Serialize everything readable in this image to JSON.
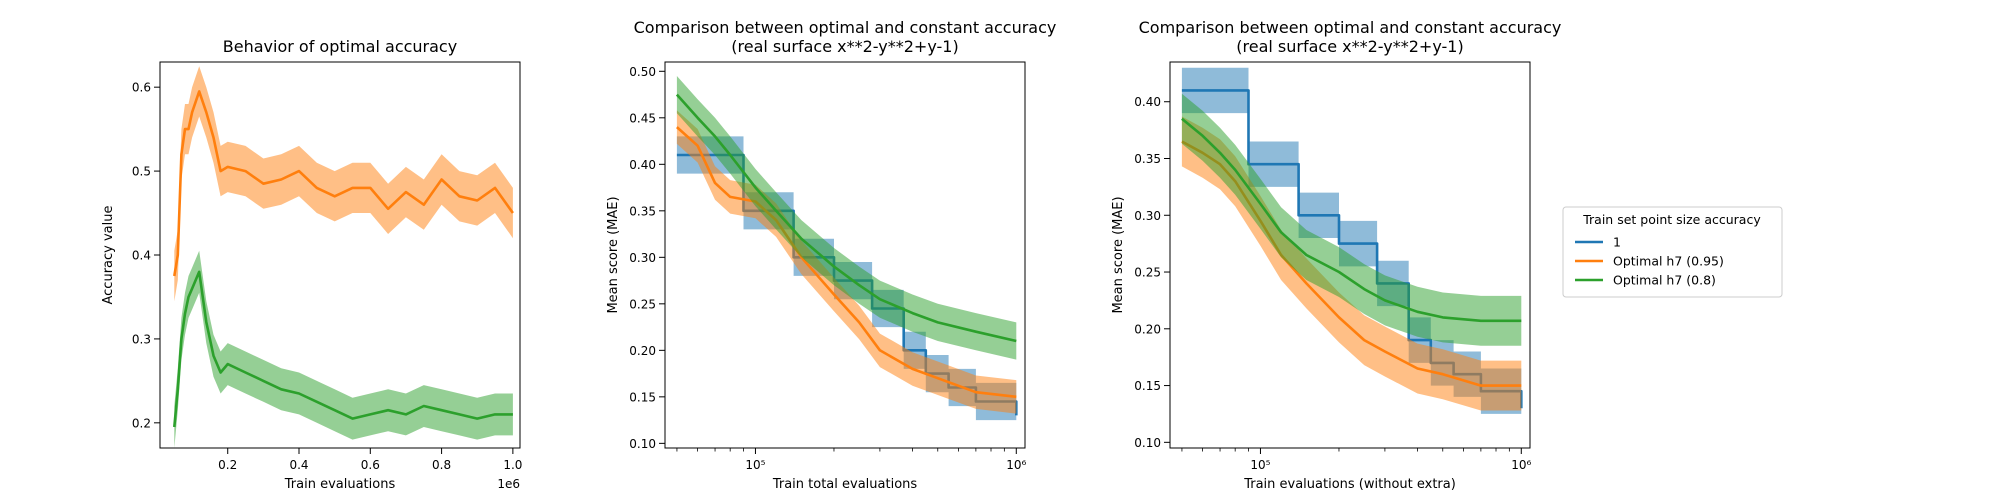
{
  "colors": {
    "blue": "#1f77b4",
    "orange": "#ff7f0e",
    "green": "#2ca02c"
  },
  "legend": {
    "title": "Train set point size accuracy",
    "entries": [
      {
        "label": "1",
        "color": "#1f77b4"
      },
      {
        "label": "Optimal h7 (0.95)",
        "color": "#ff7f0e"
      },
      {
        "label": "Optimal h7 (0.8)",
        "color": "#2ca02c"
      }
    ]
  },
  "chart_data": [
    {
      "type": "line",
      "title": "Behavior of optimal accuracy",
      "xlabel": "Train evaluations",
      "ylabel": "Accuracy value",
      "x_offset_text": "1e6",
      "xscale": "linear",
      "xlim": [
        0.01,
        1.02
      ],
      "ylim": [
        0.17,
        0.63
      ],
      "xticks": [
        0.2,
        0.4,
        0.6,
        0.8,
        1.0
      ],
      "xtick_labels": [
        "0.2",
        "0.4",
        "0.6",
        "0.8",
        "1.0"
      ],
      "yticks": [
        0.2,
        0.3,
        0.4,
        0.5,
        0.6
      ],
      "ytick_labels": [
        "0.2",
        "0.3",
        "0.4",
        "0.5",
        "0.6"
      ],
      "grid": false,
      "series": [
        {
          "color": "#ff7f0e",
          "x": [
            0.05,
            0.06,
            0.07,
            0.08,
            0.09,
            0.1,
            0.12,
            0.14,
            0.16,
            0.18,
            0.2,
            0.25,
            0.3,
            0.35,
            0.4,
            0.45,
            0.5,
            0.55,
            0.6,
            0.65,
            0.7,
            0.75,
            0.8,
            0.85,
            0.9,
            0.95,
            1.0
          ],
          "y": [
            0.375,
            0.4,
            0.52,
            0.55,
            0.55,
            0.57,
            0.595,
            0.57,
            0.54,
            0.5,
            0.505,
            0.5,
            0.485,
            0.49,
            0.5,
            0.48,
            0.47,
            0.48,
            0.48,
            0.455,
            0.475,
            0.46,
            0.49,
            0.47,
            0.465,
            0.48,
            0.45
          ],
          "band": 0.03
        },
        {
          "color": "#2ca02c",
          "x": [
            0.05,
            0.06,
            0.07,
            0.08,
            0.09,
            0.1,
            0.12,
            0.14,
            0.16,
            0.18,
            0.2,
            0.25,
            0.3,
            0.35,
            0.4,
            0.45,
            0.5,
            0.55,
            0.6,
            0.65,
            0.7,
            0.75,
            0.8,
            0.85,
            0.9,
            0.95,
            1.0
          ],
          "y": [
            0.195,
            0.24,
            0.3,
            0.33,
            0.35,
            0.36,
            0.38,
            0.32,
            0.28,
            0.26,
            0.27,
            0.26,
            0.25,
            0.24,
            0.235,
            0.225,
            0.215,
            0.205,
            0.21,
            0.215,
            0.21,
            0.22,
            0.215,
            0.21,
            0.205,
            0.21,
            0.21
          ],
          "band": 0.025
        }
      ]
    },
    {
      "type": "line",
      "title": "Comparison between optimal and constant accuracy\n(real surface x**2-y**2+y-1)",
      "xlabel": "Train total evaluations",
      "ylabel": "Mean score (MAE)",
      "xscale": "log",
      "xlim": [
        45000,
        1080000
      ],
      "ylim": [
        0.095,
        0.51
      ],
      "xticks": [
        100000,
        1000000
      ],
      "xtick_labels": [
        "10⁵",
        "10⁶"
      ],
      "yticks": [
        0.1,
        0.15,
        0.2,
        0.25,
        0.3,
        0.35,
        0.4,
        0.45,
        0.5
      ],
      "ytick_labels": [
        "0.10",
        "0.15",
        "0.20",
        "0.25",
        "0.30",
        "0.35",
        "0.40",
        "0.45",
        "0.50"
      ],
      "grid": false,
      "series": [
        {
          "color": "#1f77b4",
          "step": true,
          "x": [
            50000,
            90000,
            140000,
            200000,
            280000,
            370000,
            450000,
            550000,
            700000,
            1000000
          ],
          "y": [
            0.41,
            0.35,
            0.3,
            0.275,
            0.245,
            0.2,
            0.175,
            0.16,
            0.145,
            0.13
          ],
          "band": 0.02
        },
        {
          "color": "#ff7f0e",
          "x": [
            50000,
            60000,
            70000,
            80000,
            100000,
            120000,
            150000,
            200000,
            250000,
            300000,
            400000,
            500000,
            700000,
            1000000
          ],
          "y": [
            0.44,
            0.42,
            0.38,
            0.365,
            0.36,
            0.34,
            0.3,
            0.26,
            0.23,
            0.2,
            0.18,
            0.17,
            0.155,
            0.15
          ],
          "band": 0.018
        },
        {
          "color": "#2ca02c",
          "x": [
            50000,
            60000,
            70000,
            80000,
            100000,
            120000,
            150000,
            200000,
            250000,
            300000,
            400000,
            500000,
            700000,
            1000000
          ],
          "y": [
            0.475,
            0.45,
            0.43,
            0.41,
            0.375,
            0.35,
            0.32,
            0.29,
            0.27,
            0.255,
            0.24,
            0.23,
            0.22,
            0.21
          ],
          "band": 0.02
        }
      ]
    },
    {
      "type": "line",
      "title": "Comparison between optimal and constant accuracy\n(real surface x**2-y**2+y-1)",
      "xlabel": "Train evaluations (without extra)",
      "ylabel": "Mean score (MAE)",
      "xscale": "log",
      "xlim": [
        45000,
        1080000
      ],
      "ylim": [
        0.095,
        0.435
      ],
      "xticks": [
        100000,
        1000000
      ],
      "xtick_labels": [
        "10⁵",
        "10⁶"
      ],
      "yticks": [
        0.1,
        0.15,
        0.2,
        0.25,
        0.3,
        0.35,
        0.4
      ],
      "ytick_labels": [
        "0.10",
        "0.15",
        "0.20",
        "0.25",
        "0.30",
        "0.35",
        "0.40"
      ],
      "grid": false,
      "series": [
        {
          "color": "#1f77b4",
          "step": true,
          "x": [
            50000,
            90000,
            140000,
            200000,
            280000,
            370000,
            450000,
            550000,
            700000,
            1000000
          ],
          "y": [
            0.41,
            0.345,
            0.3,
            0.275,
            0.24,
            0.19,
            0.17,
            0.16,
            0.145,
            0.13
          ],
          "band": 0.02
        },
        {
          "color": "#ff7f0e",
          "x": [
            50000,
            60000,
            70000,
            80000,
            100000,
            120000,
            150000,
            200000,
            250000,
            300000,
            400000,
            500000,
            700000,
            1000000
          ],
          "y": [
            0.365,
            0.355,
            0.345,
            0.33,
            0.295,
            0.265,
            0.24,
            0.21,
            0.19,
            0.18,
            0.165,
            0.16,
            0.15,
            0.15
          ],
          "band": 0.022
        },
        {
          "color": "#2ca02c",
          "x": [
            50000,
            60000,
            70000,
            80000,
            100000,
            120000,
            150000,
            200000,
            250000,
            300000,
            400000,
            500000,
            700000,
            1000000
          ],
          "y": [
            0.385,
            0.37,
            0.355,
            0.34,
            0.31,
            0.285,
            0.265,
            0.25,
            0.235,
            0.225,
            0.215,
            0.21,
            0.207,
            0.207
          ],
          "band": 0.022
        }
      ]
    }
  ]
}
